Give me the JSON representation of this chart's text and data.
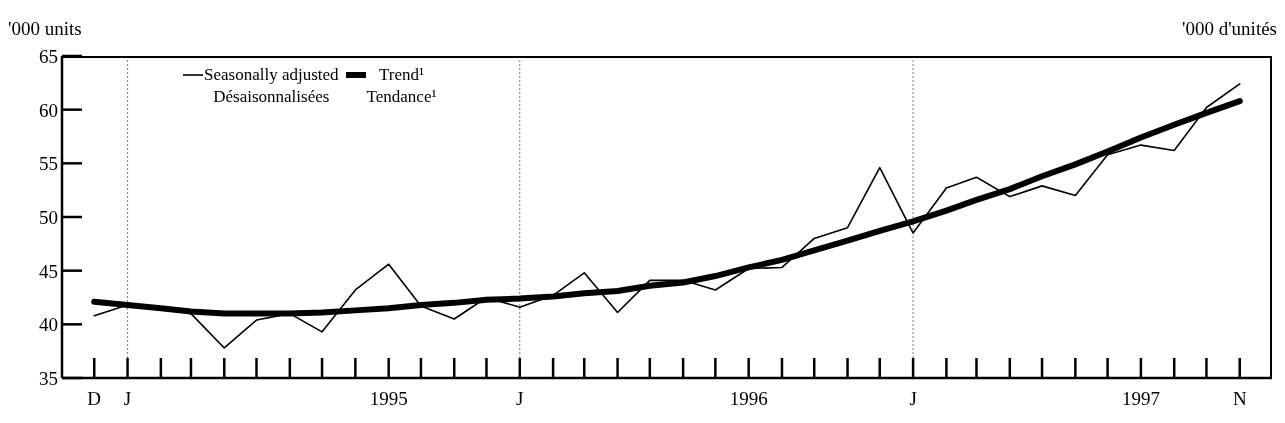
{
  "chart_data": {
    "type": "line",
    "ylabel": "'000 units",
    "annotations": [
      "'000 d'unités"
    ],
    "x": [
      "1994-12",
      "1995-01",
      "1995-02",
      "1995-03",
      "1995-04",
      "1995-05",
      "1995-06",
      "1995-07",
      "1995-08",
      "1995-09",
      "1995-10",
      "1995-11",
      "1995-12",
      "1996-01",
      "1996-02",
      "1996-03",
      "1996-04",
      "1996-05",
      "1996-06",
      "1996-07",
      "1996-08",
      "1996-09",
      "1996-10",
      "1996-11",
      "1996-12",
      "1997-01",
      "1997-02",
      "1997-03",
      "1997-04",
      "1997-05",
      "1997-06",
      "1997-07",
      "1997-08",
      "1997-09",
      "1997-10",
      "1997-11"
    ],
    "series": [
      {
        "name": "Seasonally adjusted\nDésaisonnalisées",
        "color": "#000000",
        "values": [
          40.8,
          41.8,
          41.6,
          41.0,
          37.8,
          40.4,
          41.0,
          39.3,
          43.2,
          45.6,
          41.7,
          40.5,
          42.5,
          41.6,
          42.7,
          44.8,
          41.1,
          44.1,
          44.1,
          43.2,
          45.2,
          45.3,
          48.0,
          49.0,
          54.6,
          48.5,
          52.7,
          53.7,
          51.9,
          52.9,
          52.0,
          55.8,
          56.7,
          56.2,
          60.2,
          62.4
        ]
      },
      {
        "name": "Trend¹\nTendance¹",
        "color": "#000000",
        "values": [
          42.1,
          41.8,
          41.5,
          41.2,
          41.0,
          41.0,
          41.0,
          41.1,
          41.3,
          41.5,
          41.8,
          42.0,
          42.3,
          42.4,
          42.6,
          42.9,
          43.1,
          43.6,
          43.9,
          44.5,
          45.3,
          46.0,
          46.9,
          47.8,
          48.7,
          49.6,
          50.6,
          51.6,
          52.6,
          53.8,
          54.9,
          56.1,
          57.4,
          58.6,
          59.7,
          60.8
        ]
      }
    ],
    "xlim": [
      "1994-11",
      "1997-12"
    ],
    "xticks": [
      {
        "value": "1994-12",
        "label": "D"
      },
      {
        "value": "1995-01",
        "label": "J"
      },
      {
        "value": "1995-09",
        "label": "1995"
      },
      {
        "value": "1996-01",
        "label": "J"
      },
      {
        "value": "1996-08",
        "label": "1996"
      },
      {
        "value": "1997-01",
        "label": "J"
      },
      {
        "value": "1997-08",
        "label": "1997"
      },
      {
        "value": "1997-11",
        "label": "N"
      }
    ],
    "ylim": [
      35,
      65
    ],
    "yticks": [
      35,
      40,
      45,
      50,
      55,
      60,
      65
    ],
    "ref_lines": [
      {
        "axis": "x",
        "value": "1995-01",
        "color": "#808080",
        "line_style": "dotted"
      },
      {
        "axis": "x",
        "value": "1996-01",
        "color": "#808080",
        "line_style": "dotted"
      },
      {
        "axis": "x",
        "value": "1997-01",
        "color": "#808080",
        "line_style": "dotted"
      }
    ],
    "legend": "top left",
    "marker": "none",
    "line_style": "solid"
  }
}
